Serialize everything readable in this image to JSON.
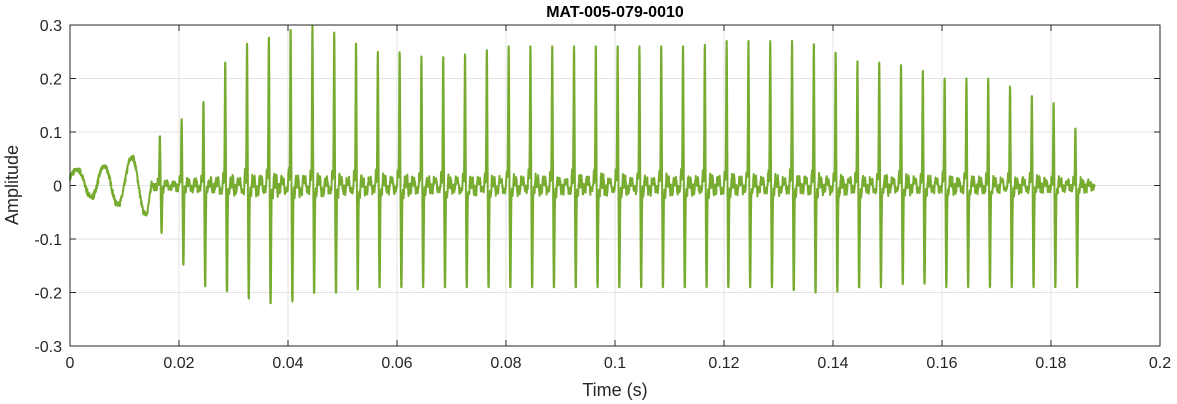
{
  "chart_data": {
    "type": "line",
    "title": "MAT-005-079-0010",
    "xlabel": "Time (s)",
    "ylabel": "Amplitude",
    "xlim": [
      0,
      0.2
    ],
    "ylim": [
      -0.3,
      0.3
    ],
    "xticks": [
      "0",
      "0.02",
      "0.04",
      "0.06",
      "0.08",
      "0.1",
      "0.12",
      "0.14",
      "0.16",
      "0.18",
      "0.2"
    ],
    "yticks": [
      "0.3",
      "0.2",
      "0.1",
      "0",
      "-0.1",
      "-0.2",
      "-0.3"
    ],
    "grid": true,
    "legend": "none",
    "series": [
      {
        "color": "#77AC30",
        "x": [
          0,
          0.005,
          0.01,
          0.015,
          0.02,
          0.025,
          0.03,
          0.035,
          0.04,
          0.045,
          0.05,
          0.055,
          0.06,
          0.065,
          0.07,
          0.075,
          0.08,
          0.085,
          0.09,
          0.095,
          0.1,
          0.105,
          0.11,
          0.115,
          0.12,
          0.125,
          0.13,
          0.135,
          0.14,
          0.145,
          0.15,
          0.155,
          0.16,
          0.165,
          0.17,
          0.175,
          0.18,
          0.185,
          0.188
        ],
        "envelope_max": [
          0.03,
          0.035,
          0.045,
          0.08,
          0.12,
          0.16,
          0.26,
          0.27,
          0.29,
          0.3,
          0.28,
          0.25,
          0.25,
          0.24,
          0.24,
          0.25,
          0.26,
          0.26,
          0.26,
          0.26,
          0.26,
          0.26,
          0.26,
          0.26,
          0.27,
          0.27,
          0.27,
          0.27,
          0.25,
          0.23,
          0.23,
          0.22,
          0.2,
          0.2,
          0.2,
          0.17,
          0.16,
          0.1,
          0.05
        ],
        "envelope_min": [
          0.0,
          -0.03,
          -0.04,
          -0.06,
          -0.14,
          -0.19,
          -0.2,
          -0.22,
          -0.22,
          -0.2,
          -0.2,
          -0.19,
          -0.19,
          -0.19,
          -0.19,
          -0.19,
          -0.19,
          -0.19,
          -0.19,
          -0.19,
          -0.19,
          -0.19,
          -0.19,
          -0.19,
          -0.19,
          -0.19,
          -0.19,
          -0.2,
          -0.2,
          -0.19,
          -0.19,
          -0.18,
          -0.19,
          -0.19,
          -0.19,
          -0.19,
          -0.19,
          -0.19,
          -0.16
        ]
      }
    ]
  }
}
